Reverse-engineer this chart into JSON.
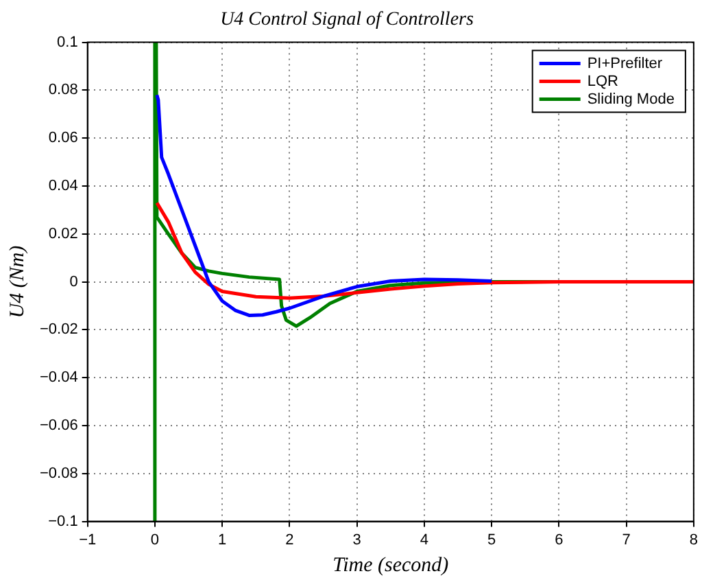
{
  "chart_data": {
    "type": "line",
    "title": "U4 Control Signal of Controllers",
    "xlabel": "Time (second)",
    "ylabel": "U4 (Nm)",
    "xlim": [
      -1,
      8
    ],
    "xticks": [
      {
        "value": -1,
        "label": "−1"
      },
      0,
      1,
      2,
      3,
      4,
      5,
      6,
      7,
      8
    ],
    "ylim": [
      -0.1,
      0.1
    ],
    "yticks": [
      {
        "value": -0.1,
        "label": "−0.1"
      },
      {
        "value": -0.08,
        "label": "−0.08"
      },
      {
        "value": -0.06,
        "label": "−0.06"
      },
      {
        "value": -0.04,
        "label": "−0.04"
      },
      {
        "value": -0.02,
        "label": "−0.02"
      },
      0,
      0.02,
      0.04,
      0.06,
      0.08,
      0.1
    ],
    "grid": true,
    "legend": "top right",
    "marker": "none",
    "line_style": "solid",
    "series": [
      {
        "name": "PI+Prefilter",
        "color": "#0000ff",
        "x": [
          0.03,
          0.05,
          0.1,
          0.2,
          0.4,
          0.6,
          0.8,
          1.0,
          1.2,
          1.4,
          1.6,
          1.8,
          2.0,
          2.5,
          3.0,
          3.5,
          4.0,
          4.5,
          5.0
        ],
        "values": [
          0.078,
          0.076,
          0.052,
          0.045,
          0.03,
          0.015,
          0.0,
          -0.008,
          -0.012,
          -0.014,
          -0.0138,
          -0.0125,
          -0.011,
          -0.006,
          -0.002,
          0.0003,
          0.001,
          0.0008,
          0.0003
        ]
      },
      {
        "name": "LQR",
        "color": "#ff0000",
        "x": [
          0.03,
          0.2,
          0.4,
          0.6,
          0.8,
          1.0,
          1.5,
          2.0,
          2.5,
          3.0,
          3.5,
          4.0,
          4.5,
          5.0,
          6.0,
          8.0
        ],
        "values": [
          0.033,
          0.025,
          0.012,
          0.004,
          -0.001,
          -0.004,
          -0.0062,
          -0.0068,
          -0.006,
          -0.0045,
          -0.003,
          -0.0018,
          -0.0008,
          -0.0003,
          0,
          0
        ]
      },
      {
        "name": "Sliding Mode",
        "color": "#008000",
        "x": [
          0,
          0,
          0.02,
          0.03,
          0.2,
          0.4,
          0.6,
          0.8,
          1.0,
          1.4,
          1.85,
          1.88,
          1.95,
          2.1,
          2.3,
          2.6,
          3.0,
          3.5,
          4.0,
          5.0,
          8.0
        ],
        "values": [
          -0.1,
          0.1,
          0.1,
          0.027,
          0.02,
          0.012,
          0.006,
          0.0045,
          0.0035,
          0.002,
          0.001,
          -0.01,
          -0.016,
          -0.0185,
          -0.015,
          -0.009,
          -0.004,
          -0.0015,
          -0.0005,
          0,
          0
        ]
      }
    ]
  }
}
